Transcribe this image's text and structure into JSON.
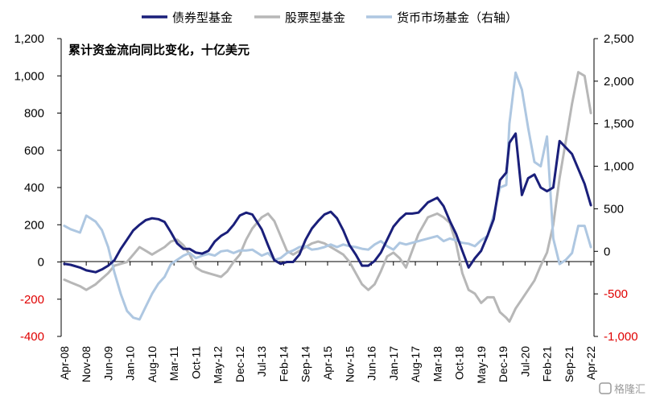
{
  "chart_data": {
    "type": "line",
    "title": "累计资金流向同比变化，十亿美元",
    "left_axis": {
      "ylim": [
        -400,
        1200
      ],
      "ticks": [
        "1,200",
        "1,000",
        "800",
        "600",
        "400",
        "200",
        "0",
        "-200",
        "-400"
      ]
    },
    "right_axis": {
      "ylim": [
        -1000,
        2500
      ],
      "ticks": [
        "2,500",
        "2,000",
        "1,500",
        "1,000",
        "500",
        "0",
        "-500",
        "-1,000"
      ]
    },
    "x_tick_labels": [
      "Apr-08",
      "Nov-08",
      "Jun-09",
      "Jan-10",
      "Aug-10",
      "Mar-11",
      "Oct-11",
      "May-12",
      "Dec-12",
      "Jul-13",
      "Feb-14",
      "Sep-14",
      "Apr-15",
      "Nov-15",
      "Jun-16",
      "Jan-17",
      "Aug-17",
      "Mar-18",
      "Oct-18",
      "May-19",
      "Dec-19",
      "Jul-20",
      "Feb-21",
      "Sep-21",
      "Apr-22"
    ],
    "legend_position": "top",
    "series": [
      {
        "name": "债券型基金",
        "axis": "left",
        "color": "#1a1f7a",
        "x": [
          "Apr-08",
          "Jun-08",
          "Sep-08",
          "Nov-08",
          "Feb-09",
          "Apr-09",
          "Jun-09",
          "Aug-09",
          "Oct-09",
          "Dec-09",
          "Feb-10",
          "Apr-10",
          "Jun-10",
          "Aug-10",
          "Oct-10",
          "Dec-10",
          "Feb-11",
          "Apr-11",
          "Jun-11",
          "Aug-11",
          "Oct-11",
          "Dec-11",
          "Feb-12",
          "Apr-12",
          "Jun-12",
          "Aug-12",
          "Oct-12",
          "Dec-12",
          "Feb-13",
          "Apr-13",
          "Jul-13",
          "Sep-13",
          "Nov-13",
          "Jan-14",
          "Mar-14",
          "May-14",
          "Jul-14",
          "Sep-14",
          "Nov-14",
          "Jan-15",
          "Mar-15",
          "May-15",
          "Jul-15",
          "Sep-15",
          "Nov-15",
          "Jan-16",
          "Mar-16",
          "May-16",
          "Jul-16",
          "Sep-16",
          "Nov-16",
          "Jan-17",
          "Mar-17",
          "May-17",
          "Jul-17",
          "Sep-17",
          "Dec-17",
          "Mar-18",
          "May-18",
          "Jul-18",
          "Sep-18",
          "Nov-18",
          "Jan-19",
          "Mar-19",
          "May-19",
          "Jul-19",
          "Sep-19",
          "Nov-19",
          "Jan-20",
          "Feb-20",
          "Apr-20",
          "Jun-20",
          "Aug-20",
          "Oct-20",
          "Dec-20",
          "Feb-21",
          "Apr-21",
          "Jun-21",
          "Aug-21",
          "Oct-21",
          "Dec-21",
          "Feb-22",
          "Apr-22"
        ],
        "values": [
          -10,
          -15,
          -30,
          -45,
          -55,
          -40,
          -20,
          10,
          70,
          120,
          170,
          200,
          225,
          235,
          230,
          215,
          160,
          100,
          70,
          70,
          50,
          45,
          60,
          110,
          140,
          160,
          200,
          250,
          265,
          255,
          175,
          90,
          10,
          -10,
          0,
          0,
          40,
          120,
          180,
          220,
          255,
          270,
          235,
          170,
          90,
          40,
          -20,
          -20,
          5,
          50,
          120,
          190,
          230,
          260,
          260,
          265,
          320,
          345,
          300,
          220,
          150,
          60,
          -30,
          20,
          60,
          140,
          230,
          440,
          480,
          640,
          690,
          360,
          450,
          470,
          400,
          380,
          400,
          650,
          615,
          580,
          500,
          420,
          305
        ]
      },
      {
        "name": "股票型基金",
        "axis": "left",
        "color": "#b7b7b7",
        "x": [
          "Apr-08",
          "Jun-08",
          "Sep-08",
          "Nov-08",
          "Feb-09",
          "Apr-09",
          "Jun-09",
          "Aug-09",
          "Oct-09",
          "Dec-09",
          "Feb-10",
          "Apr-10",
          "Jun-10",
          "Aug-10",
          "Oct-10",
          "Dec-10",
          "Feb-11",
          "Apr-11",
          "Jun-11",
          "Aug-11",
          "Oct-11",
          "Dec-11",
          "Feb-12",
          "Apr-12",
          "Jun-12",
          "Aug-12",
          "Oct-12",
          "Dec-12",
          "Feb-13",
          "Apr-13",
          "Jul-13",
          "Sep-13",
          "Nov-13",
          "Jan-14",
          "Mar-14",
          "May-14",
          "Jul-14",
          "Sep-14",
          "Nov-14",
          "Jan-15",
          "Mar-15",
          "May-15",
          "Jul-15",
          "Sep-15",
          "Nov-15",
          "Jan-16",
          "Mar-16",
          "May-16",
          "Jul-16",
          "Sep-16",
          "Nov-16",
          "Jan-17",
          "Mar-17",
          "May-17",
          "Jul-17",
          "Sep-17",
          "Dec-17",
          "Mar-18",
          "May-18",
          "Jul-18",
          "Sep-18",
          "Nov-18",
          "Jan-19",
          "Mar-19",
          "May-19",
          "Jul-19",
          "Sep-19",
          "Nov-19",
          "Jan-20",
          "Feb-20",
          "Apr-20",
          "Jun-20",
          "Aug-20",
          "Oct-20",
          "Dec-20",
          "Feb-21",
          "Apr-21",
          "Jun-21",
          "Aug-21",
          "Oct-21",
          "Dec-21",
          "Feb-22",
          "Apr-22"
        ],
        "values": [
          -95,
          -110,
          -130,
          -150,
          -120,
          -90,
          -60,
          -20,
          -10,
          0,
          40,
          80,
          60,
          40,
          60,
          80,
          110,
          120,
          90,
          40,
          -30,
          -50,
          -60,
          -70,
          -80,
          -50,
          0,
          40,
          120,
          180,
          240,
          260,
          220,
          140,
          60,
          40,
          60,
          80,
          100,
          110,
          100,
          80,
          60,
          40,
          0,
          -60,
          -120,
          -150,
          -120,
          -50,
          30,
          50,
          20,
          -30,
          60,
          150,
          240,
          260,
          240,
          210,
          100,
          -60,
          -150,
          -170,
          -220,
          -190,
          -190,
          -270,
          -300,
          -320,
          -250,
          -200,
          -150,
          -100,
          -20,
          50,
          200,
          450,
          650,
          850,
          1020,
          1000,
          800
        ]
      },
      {
        "name": "货币市场基金（右轴）",
        "axis": "right",
        "color": "#aec7e1",
        "x": [
          "Apr-08",
          "Jun-08",
          "Sep-08",
          "Nov-08",
          "Feb-09",
          "Apr-09",
          "Jun-09",
          "Aug-09",
          "Oct-09",
          "Dec-09",
          "Feb-10",
          "Apr-10",
          "Jun-10",
          "Aug-10",
          "Oct-10",
          "Dec-10",
          "Feb-11",
          "Apr-11",
          "Jun-11",
          "Aug-11",
          "Oct-11",
          "Dec-11",
          "Feb-12",
          "Apr-12",
          "Jun-12",
          "Aug-12",
          "Oct-12",
          "Dec-12",
          "Feb-13",
          "Apr-13",
          "Jul-13",
          "Sep-13",
          "Nov-13",
          "Jan-14",
          "Mar-14",
          "May-14",
          "Jul-14",
          "Sep-14",
          "Nov-14",
          "Jan-15",
          "Mar-15",
          "May-15",
          "Jul-15",
          "Sep-15",
          "Nov-15",
          "Jan-16",
          "Mar-16",
          "May-16",
          "Jul-16",
          "Sep-16",
          "Nov-16",
          "Jan-17",
          "Mar-17",
          "May-17",
          "Jul-17",
          "Sep-17",
          "Dec-17",
          "Mar-18",
          "May-18",
          "Jul-18",
          "Sep-18",
          "Nov-18",
          "Jan-19",
          "Mar-19",
          "May-19",
          "Jul-19",
          "Sep-19",
          "Nov-19",
          "Jan-20",
          "Feb-20",
          "Apr-20",
          "Jun-20",
          "Aug-20",
          "Oct-20",
          "Dec-20",
          "Feb-21",
          "Apr-21",
          "Jun-21",
          "Aug-21",
          "Oct-21",
          "Dec-21",
          "Feb-22",
          "Apr-22"
        ],
        "values": [
          300,
          260,
          220,
          420,
          350,
          250,
          50,
          -250,
          -500,
          -700,
          -780,
          -800,
          -650,
          -500,
          -380,
          -300,
          -150,
          -100,
          -50,
          -20,
          -80,
          -50,
          -30,
          -50,
          0,
          10,
          -20,
          10,
          10,
          20,
          -50,
          -20,
          -100,
          -80,
          -20,
          10,
          50,
          60,
          20,
          30,
          50,
          80,
          50,
          80,
          60,
          50,
          30,
          20,
          80,
          120,
          60,
          20,
          100,
          80,
          100,
          120,
          150,
          180,
          120,
          150,
          130,
          100,
          90,
          60,
          130,
          180,
          430,
          750,
          780,
          1500,
          2100,
          1900,
          1450,
          1050,
          1000,
          1350,
          150,
          -150,
          -100,
          -20,
          300,
          300,
          50
        ]
      }
    ]
  },
  "watermark": "格隆汇"
}
